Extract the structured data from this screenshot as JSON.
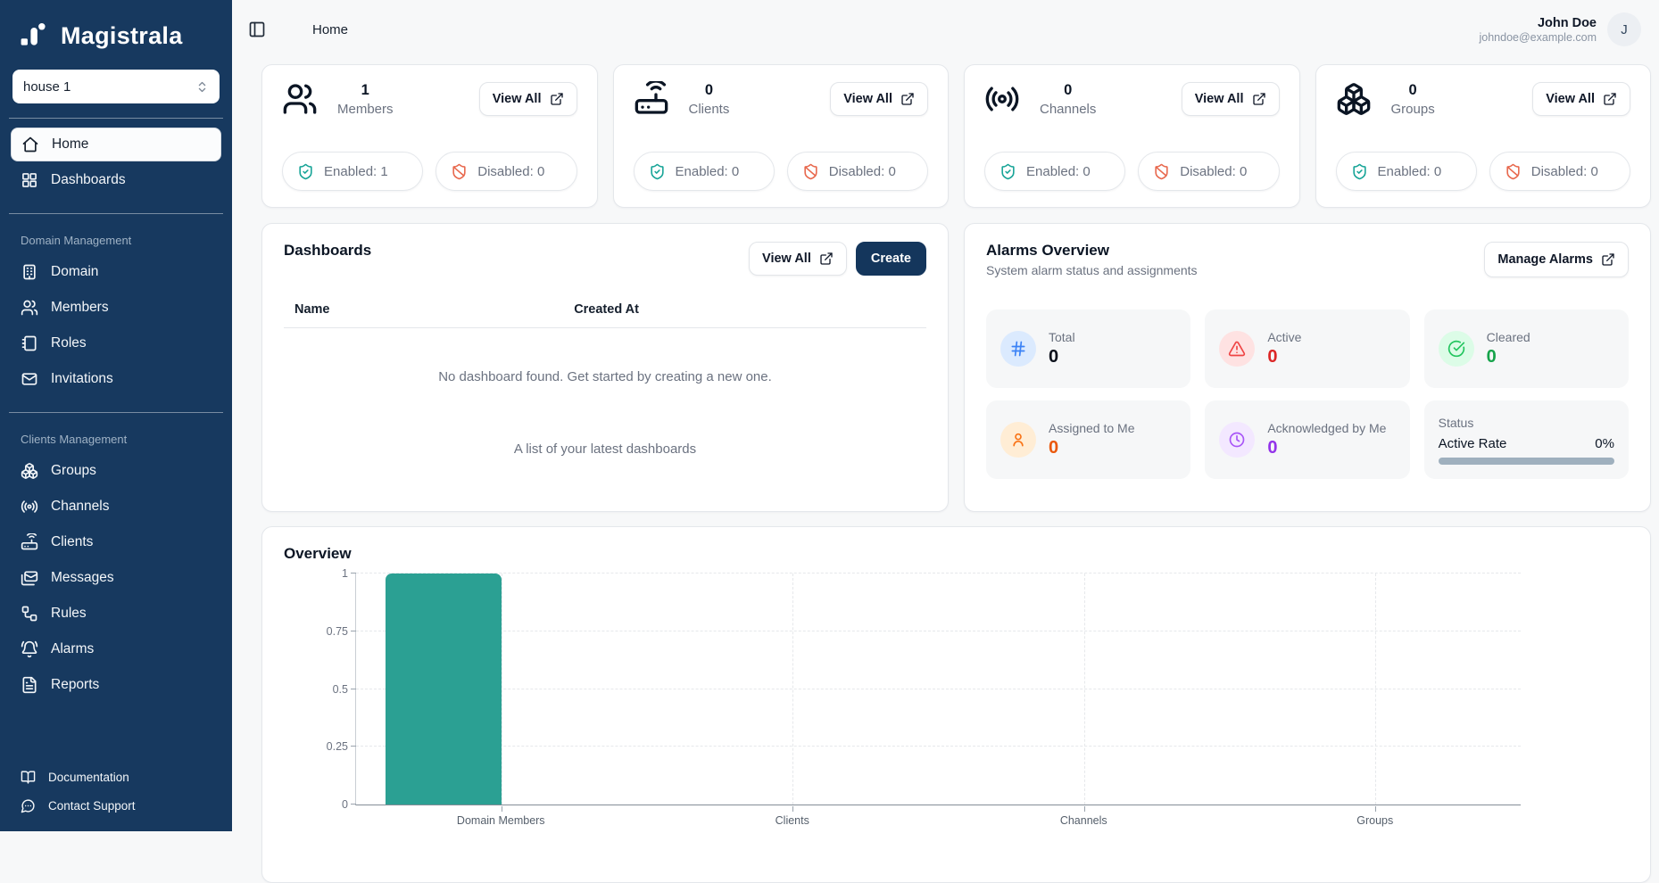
{
  "brand": {
    "name": "Magistrala",
    "logo_icon": "magistrala-logo-icon"
  },
  "domain_selector": {
    "value": "house 1",
    "icon": "chevrons-up-down-icon"
  },
  "sidebar": {
    "main_items": [
      {
        "label": "Home",
        "icon": "home-icon",
        "active": true
      },
      {
        "label": "Dashboards",
        "icon": "dashboard-grid-icon",
        "active": false
      }
    ],
    "sections": [
      {
        "title": "Domain Management",
        "items": [
          {
            "label": "Domain",
            "icon": "building-icon"
          },
          {
            "label": "Members",
            "icon": "users-icon"
          },
          {
            "label": "Roles",
            "icon": "notebook-icon"
          },
          {
            "label": "Invitations",
            "icon": "mail-icon"
          }
        ]
      },
      {
        "title": "Clients Management",
        "items": [
          {
            "label": "Groups",
            "icon": "boxes-icon"
          },
          {
            "label": "Channels",
            "icon": "radio-icon"
          },
          {
            "label": "Clients",
            "icon": "router-icon"
          },
          {
            "label": "Messages",
            "icon": "message-mail-icon"
          },
          {
            "label": "Rules",
            "icon": "workflow-icon"
          },
          {
            "label": "Alarms",
            "icon": "bell-icon"
          },
          {
            "label": "Reports",
            "icon": "file-report-icon"
          }
        ]
      }
    ],
    "footer_items": [
      {
        "label": "Documentation",
        "icon": "book-open-icon"
      },
      {
        "label": "Contact Support",
        "icon": "chat-bubble-icon"
      }
    ]
  },
  "header": {
    "breadcrumb": "Home",
    "user": {
      "name": "John Doe",
      "email": "johndoe@example.com",
      "avatar_initial": "J"
    }
  },
  "stat_cards": [
    {
      "count": "1",
      "label": "Members",
      "icon": "users-icon",
      "view_all_label": "View All",
      "enabled_label": "Enabled: 1",
      "disabled_label": "Disabled: 0"
    },
    {
      "count": "0",
      "label": "Clients",
      "icon": "router-icon",
      "view_all_label": "View All",
      "enabled_label": "Enabled: 0",
      "disabled_label": "Disabled: 0"
    },
    {
      "count": "0",
      "label": "Channels",
      "icon": "radio-icon",
      "view_all_label": "View All",
      "enabled_label": "Enabled: 0",
      "disabled_label": "Disabled: 0"
    },
    {
      "count": "0",
      "label": "Groups",
      "icon": "boxes-icon",
      "view_all_label": "View All",
      "enabled_label": "Enabled: 0",
      "disabled_label": "Disabled: 0"
    }
  ],
  "dashboards_card": {
    "title": "Dashboards",
    "view_all_label": "View All",
    "create_label": "Create",
    "table_headers": [
      "Name",
      "Created At"
    ],
    "empty_message": "No dashboard found. Get started by creating a new one.",
    "footer_caption": "A list of your latest dashboards"
  },
  "alarms_card": {
    "title": "Alarms Overview",
    "subtitle": "System alarm status and assignments",
    "manage_label": "Manage Alarms",
    "tiles": [
      {
        "label": "Total",
        "value": "0",
        "icon": "hash-icon",
        "icon_color": "#3b82f6",
        "icon_bg": "#dbeafe",
        "value_color": "#0a0f1a"
      },
      {
        "label": "Active",
        "value": "0",
        "icon": "alert-triangle-icon",
        "icon_color": "#ef4444",
        "icon_bg": "#fee2e2",
        "value_color": "#dc2626"
      },
      {
        "label": "Cleared",
        "value": "0",
        "icon": "check-circle-icon",
        "icon_color": "#22c55e",
        "icon_bg": "#dcfce7",
        "value_color": "#16a34a"
      },
      {
        "label": "Assigned to Me",
        "value": "0",
        "icon": "user-icon",
        "icon_color": "#f97316",
        "icon_bg": "#ffedd5",
        "value_color": "#ea580c"
      },
      {
        "label": "Acknowledged by Me",
        "value": "0",
        "icon": "clock-icon",
        "icon_color": "#a855f7",
        "icon_bg": "#f3e8ff",
        "value_color": "#9333ea"
      }
    ],
    "status_tile": {
      "label": "Status",
      "metric_label": "Active Rate",
      "metric_value": "0%",
      "bar_color": "#9fb0be"
    }
  },
  "chart_data": {
    "type": "bar",
    "title": "Overview",
    "categories": [
      "Domain Members",
      "Clients",
      "Channels",
      "Groups"
    ],
    "values": [
      1,
      0,
      0,
      0
    ],
    "y_ticks": [
      0,
      0.25,
      0.5,
      0.75,
      1
    ],
    "ylim": [
      0,
      1
    ],
    "xlabel": "",
    "ylabel": "",
    "bar_color": "#2ba093",
    "grid": "dashed",
    "legend": "none"
  },
  "colors": {
    "sidebar_bg": "#17395f",
    "primary_button": "#14365c",
    "enabled_badge_icon": "#17a497",
    "disabled_badge_icon": "#e8684d",
    "chart_bar": "#2ba093",
    "progress_track": "#9fb0be"
  }
}
